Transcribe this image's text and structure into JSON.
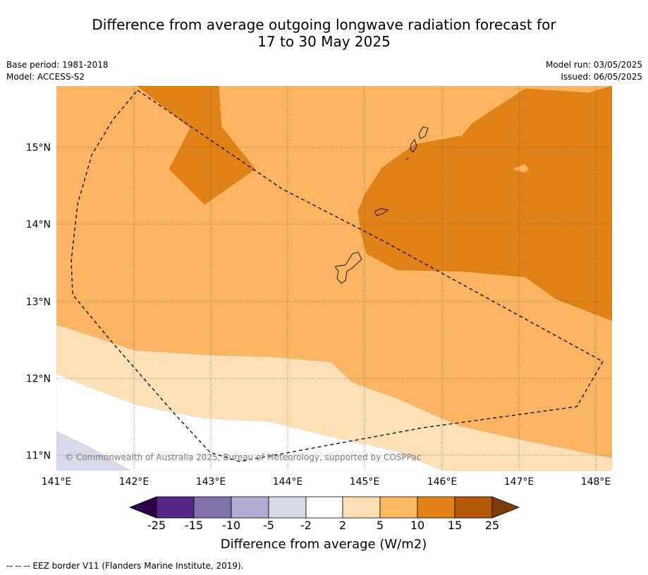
{
  "title": {
    "line1": "Difference from average outgoing longwave radiation forecast for",
    "line2": "17 to 30 May 2025"
  },
  "meta": {
    "base_period": "Base period: 1981-2018",
    "model": "Model: ACCESS-S2",
    "model_run": "Model run: 03/05/2025",
    "issued": "Issued: 06/05/2025"
  },
  "map": {
    "lon_labels": [
      "141°E",
      "142°E",
      "143°E",
      "144°E",
      "145°E",
      "146°E",
      "147°E",
      "148°E"
    ],
    "lat_labels": [
      "15°N",
      "14°N",
      "13°N",
      "12°N",
      "11°N"
    ],
    "copyright": "© Commonwealth of Australia 2025, Bureau of Meteorology, supported by COSPPac",
    "colors": {
      "light_orange": "#fbb562",
      "pale_orange": "#fde0b6",
      "dark_orange": "#e08215",
      "white": "#ffffff",
      "pale_purple": "#d8d9eb",
      "eez_border": "#000000"
    }
  },
  "colorbar": {
    "labels": [
      "-25",
      "-15",
      "-10",
      "-5",
      "-2",
      "2",
      "5",
      "10",
      "15",
      "25"
    ],
    "colors": [
      "#2d004b",
      "#542789",
      "#8073ac",
      "#b2abd2",
      "#d8daeb",
      "#ffffff",
      "#fee0b6",
      "#fdb863",
      "#e08214",
      "#b35806",
      "#7f3b08"
    ],
    "label": "Difference from average (W/m2)"
  },
  "footer": {
    "eez_note": "--  --  -- EEZ border V11 (Flanders Marine Institute, 2019)."
  }
}
